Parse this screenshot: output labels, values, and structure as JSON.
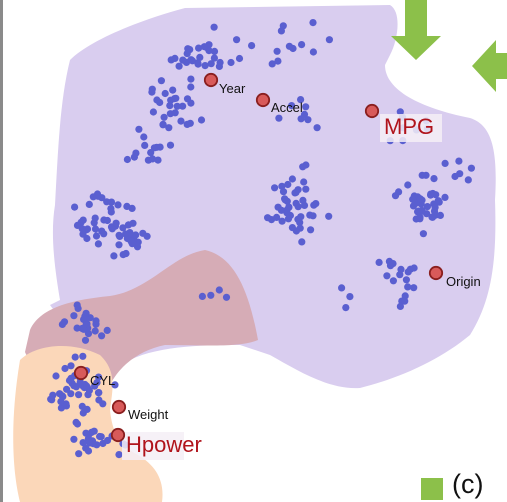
{
  "panel_label": "(c)",
  "colors": {
    "region_purple": "#d9cdef",
    "region_red": "#d6acb6",
    "region_orange": "#fbd7b9",
    "point": "#5a5fd0",
    "dimension_fill": "#d85a5a",
    "dimension_stroke": "#8a1f1f",
    "highlight_text": "#b0141c",
    "arrow": "#8cc04a"
  },
  "regions": [
    {
      "name": "purple-region",
      "color": "purple"
    },
    {
      "name": "red-region",
      "color": "red"
    },
    {
      "name": "orange-region",
      "color": "orange"
    }
  ],
  "dimensions": [
    {
      "id": "year",
      "label": "Year",
      "highlighted": false
    },
    {
      "id": "accel",
      "label": "Accel",
      "highlighted": false
    },
    {
      "id": "mpg",
      "label": "MPG",
      "highlighted": true
    },
    {
      "id": "origin",
      "label": "Origin",
      "highlighted": false
    },
    {
      "id": "cyl",
      "label": "CYL",
      "highlighted": false
    },
    {
      "id": "weight",
      "label": "Weight",
      "highlighted": false
    },
    {
      "id": "hpower",
      "label": "Hpower",
      "highlighted": true
    }
  ],
  "arrows": [
    {
      "name": "down-arrow-icon",
      "direction": "down"
    },
    {
      "name": "left-arrow-icon",
      "direction": "left"
    }
  ]
}
